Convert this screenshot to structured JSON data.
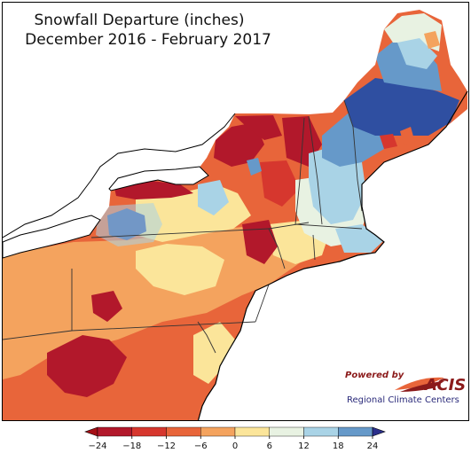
{
  "title": {
    "line1": "Snowfall Departure (inches)",
    "line2": "December 2016 - February 2017"
  },
  "logo": {
    "powered_by": "Powered by",
    "brand": "ACIS",
    "subtitle": "Regional Climate Centers"
  },
  "legend": {
    "ticks": [
      "−24",
      "−18",
      "−12",
      "−6",
      "0",
      "6",
      "12",
      "18",
      "24"
    ],
    "colors": [
      "#b2182b",
      "#d6372e",
      "#e8653a",
      "#f4a35e",
      "#fbe59a",
      "#e8f2e2",
      "#a9d3e6",
      "#6699c9",
      "#2f4fa1"
    ],
    "under_color": "#a50f15",
    "over_color": "#2b2f8c"
  },
  "map": {
    "background": "#ffffff",
    "lake_color": "#ffffff",
    "region_colors": {
      "deep_deficit": "#b2182b",
      "deficit": "#d6372e",
      "moderate_deficit": "#e8653a",
      "slight_deficit": "#f4a35e",
      "near_normal": "#fbe59a",
      "slight_surplus": "#e8f2e2",
      "surplus": "#a9d3e6",
      "large_surplus": "#6699c9",
      "very_large_surplus": "#2f4fa1"
    }
  }
}
